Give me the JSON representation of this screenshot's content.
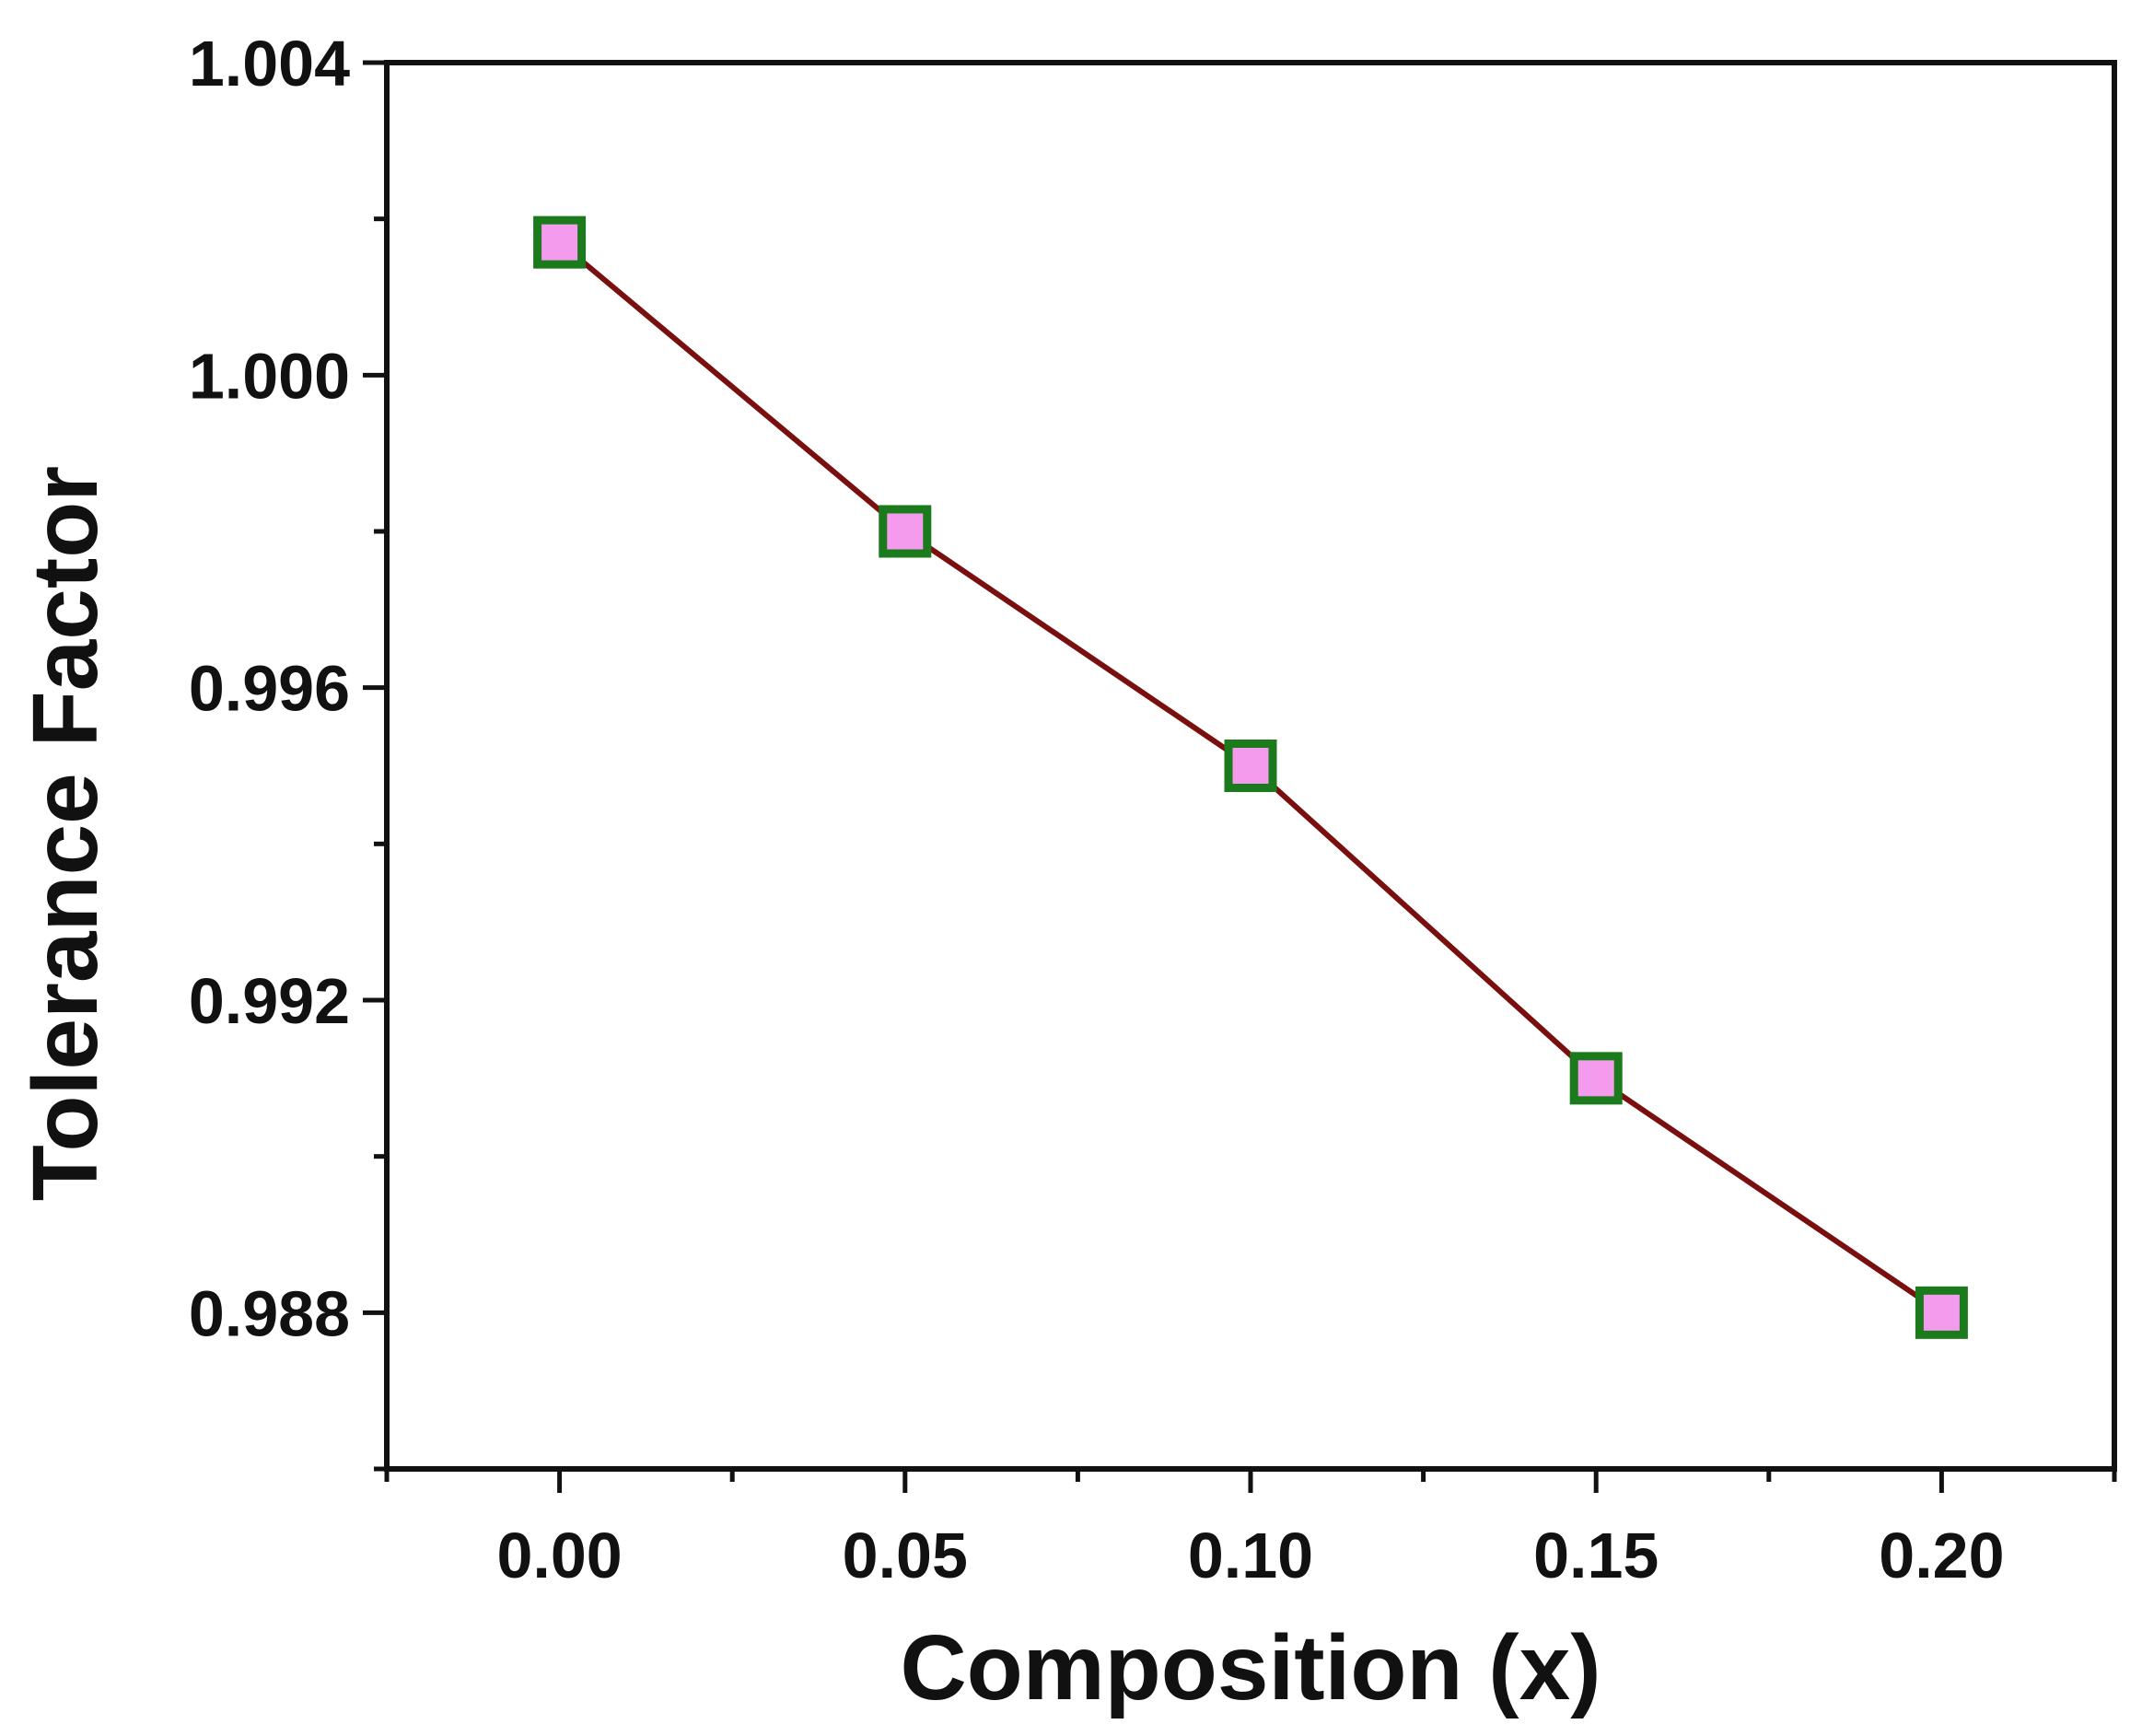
{
  "chart_data": {
    "type": "line",
    "title": "",
    "xlabel": "Composition (x)",
    "ylabel": "Tolerance Factor",
    "xlim": [
      -0.025,
      0.225
    ],
    "ylim": [
      0.986,
      1.004
    ],
    "x_ticks": [
      0.0,
      0.05,
      0.1,
      0.15,
      0.2
    ],
    "x_tick_labels": [
      "0.00",
      "0.05",
      "0.10",
      "0.15",
      "0.20"
    ],
    "y_ticks": [
      0.988,
      0.992,
      0.996,
      1.0,
      1.004
    ],
    "y_tick_labels": [
      "0.988",
      "0.992",
      "0.996",
      "1.000",
      "1.004"
    ],
    "grid": false,
    "legend": "none",
    "series": [
      {
        "name": "Tolerance Factor",
        "x": [
          0.0,
          0.05,
          0.1,
          0.15,
          0.2
        ],
        "values": [
          1.0017,
          0.998,
          0.995,
          0.991,
          0.988
        ],
        "line_color": "#7a0f0f",
        "marker": "square",
        "marker_fill": "#f59bee",
        "marker_edge": "#1b7a1b"
      }
    ]
  }
}
